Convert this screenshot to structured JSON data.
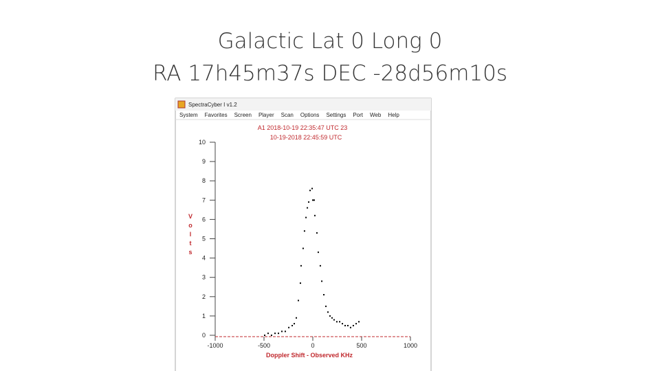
{
  "slide": {
    "title_lines": [
      "Galactic Lat 0 Long 0",
      "RA 17h45m37s DEC -28d56m10s"
    ]
  },
  "window": {
    "title": "SpectraCyber I v1.2",
    "menu": [
      "System",
      "Favorites",
      "Screen",
      "Player",
      "Scan",
      "Options",
      "Settings",
      "Port",
      "Web",
      "Help"
    ]
  },
  "chart_data": {
    "type": "scatter",
    "header_lines": [
      "A1 2018-10-19 22:35:47 UTC 23",
      "10-19-2018  22:45:59 UTC"
    ],
    "xlabel": "Doppler Shift - Observed KHz",
    "ylabel": "Volts",
    "x": [
      -493,
      -458,
      -423,
      -387,
      -352,
      -317,
      -282,
      -246,
      -211,
      -190,
      -169,
      -148,
      -127,
      -120,
      -99,
      -85,
      -70,
      -56,
      -42,
      -28,
      -7,
      0,
      14,
      21,
      42,
      56,
      77,
      92,
      113,
      134,
      155,
      176,
      197,
      218,
      246,
      275,
      303,
      331,
      359,
      387,
      415,
      444,
      472
    ],
    "values": [
      0.0,
      0.1,
      0.0,
      0.1,
      0.1,
      0.2,
      0.2,
      0.4,
      0.5,
      0.6,
      0.9,
      1.8,
      2.7,
      3.6,
      4.5,
      5.4,
      6.1,
      6.6,
      6.9,
      7.5,
      7.6,
      7.0,
      7.0,
      6.2,
      5.3,
      4.3,
      3.6,
      2.8,
      2.1,
      1.5,
      1.2,
      1.0,
      0.9,
      0.8,
      0.7,
      0.7,
      0.6,
      0.5,
      0.5,
      0.4,
      0.5,
      0.6,
      0.7
    ],
    "color": "#000000",
    "xlim": [
      -1000,
      1000
    ],
    "xticks": [
      -1000,
      -500,
      0,
      500,
      1000
    ],
    "ylim": [
      0,
      10
    ],
    "yticks": [
      0,
      1,
      2,
      3,
      4,
      5,
      6,
      7,
      8,
      9,
      10
    ]
  }
}
